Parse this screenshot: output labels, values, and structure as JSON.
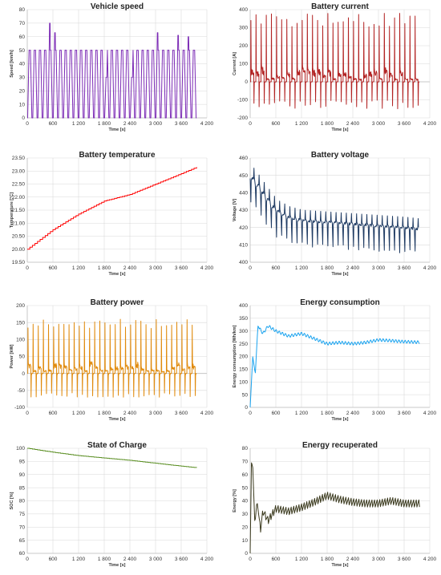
{
  "chart_data": [
    {
      "type": "line",
      "title": "Vehicle speed",
      "ylabel": "Speed [km/h]",
      "xlabel": "Time [s]",
      "xlim": [
        0,
        4200
      ],
      "ylim": [
        0,
        80
      ],
      "xticks": [
        0,
        600,
        1200,
        1800,
        2400,
        3000,
        3600,
        4200
      ],
      "yticks": [
        0,
        10,
        20,
        30,
        40,
        50,
        60,
        70,
        80
      ],
      "grid": true,
      "legend": "none",
      "color": "#7b2ab5",
      "series": [
        {
          "profile": "drive_cycle",
          "cycles": 33,
          "x_end": 3960,
          "cruise": 50,
          "peaks": [
            [
              480,
              70
            ],
            [
              660,
              63
            ],
            [
              1800,
              30
            ],
            [
              2460,
              30
            ],
            [
              3060,
              63
            ],
            [
              3540,
              61
            ],
            [
              3780,
              60
            ]
          ]
        }
      ]
    },
    {
      "type": "line",
      "title": "Battery current",
      "ylabel": "Current [A]",
      "xlabel": "Time [s]",
      "xlim": [
        0,
        4200
      ],
      "ylim": [
        -200,
        400
      ],
      "xticks": [
        0,
        600,
        1200,
        1800,
        2400,
        3000,
        3600,
        4200
      ],
      "yticks": [
        -200,
        -100,
        0,
        100,
        200,
        300,
        400
      ],
      "grid": true,
      "legend": "none",
      "color": "#b22222",
      "series": [
        {
          "profile": "spikes",
          "cycles": 33,
          "x_end": 3960,
          "spike_max": [
            300,
            380
          ],
          "regen_min": [
            -100,
            -150
          ],
          "cruise": [
            10,
            60
          ]
        }
      ]
    },
    {
      "type": "line",
      "title": "Battery temperature",
      "ylabel": "Temperature [°C]",
      "xlabel": "Time [s]",
      "xlim": [
        0,
        4200
      ],
      "ylim": [
        19.5,
        23.5
      ],
      "xticks": [
        0,
        600,
        1200,
        1800,
        2400,
        3000,
        3600,
        4200
      ],
      "yticks": [
        19.5,
        20,
        20.5,
        21,
        21.5,
        22,
        22.5,
        23,
        23.5
      ],
      "grid": true,
      "legend": "none",
      "color": "#ff0000",
      "series": [
        {
          "profile": "steps",
          "x": [
            0,
            600,
            1200,
            1800,
            2400,
            3000,
            3600,
            3960
          ],
          "y": [
            20.0,
            20.75,
            21.35,
            21.85,
            22.1,
            22.5,
            22.9,
            23.15
          ]
        }
      ]
    },
    {
      "type": "line",
      "title": "Battery voltage",
      "ylabel": "Voltage [V]",
      "xlabel": "Time [s]",
      "xlim": [
        0,
        4200
      ],
      "ylim": [
        400,
        460
      ],
      "xticks": [
        0,
        600,
        1200,
        1800,
        2400,
        3000,
        3600,
        4200
      ],
      "yticks": [
        400,
        410,
        420,
        430,
        440,
        450,
        460
      ],
      "grid": true,
      "legend": "none",
      "color": "#1f3b63",
      "series": [
        {
          "profile": "decay_spikes",
          "cycles": 33,
          "x_end": 3960,
          "x": [
            0,
            100,
            300,
            600,
            900,
            1200,
            1800,
            2400,
            3000,
            3600,
            3960
          ],
          "y": [
            450,
            447,
            440,
            430,
            426,
            424,
            423,
            422,
            421,
            420,
            419
          ],
          "spike_down": [
            15,
            12
          ],
          "spike_up": 2
        }
      ]
    },
    {
      "type": "line",
      "title": "Battery power",
      "ylabel": "Power [kW]",
      "xlabel": "Time [s]",
      "xlim": [
        0,
        4200
      ],
      "ylim": [
        -100,
        200
      ],
      "xticks": [
        0,
        600,
        1200,
        1800,
        2400,
        3000,
        3600,
        4200
      ],
      "yticks": [
        -100,
        -50,
        0,
        50,
        100,
        150,
        200
      ],
      "grid": true,
      "legend": "none",
      "color": "#e08a0c",
      "series": [
        {
          "profile": "spikes",
          "cycles": 33,
          "x_end": 3960,
          "spike_max": [
            130,
            160
          ],
          "regen_min": [
            -55,
            -70
          ],
          "cruise": [
            5,
            25
          ]
        }
      ]
    },
    {
      "type": "line",
      "title": "Energy consumption",
      "ylabel": "Energy consumption [Wh/km]",
      "xlabel": "Time [s]",
      "xlim": [
        0,
        4200
      ],
      "ylim": [
        0,
        400
      ],
      "xticks": [
        0,
        600,
        1200,
        1800,
        2400,
        3000,
        3600,
        4200
      ],
      "yticks": [
        0,
        50,
        100,
        150,
        200,
        250,
        300,
        350,
        400
      ],
      "grid": true,
      "legend": "none",
      "color": "#1aa3ef",
      "series": [
        {
          "profile": "ripple",
          "x": [
            0,
            60,
            120,
            180,
            300,
            420,
            600,
            900,
            1200,
            1500,
            1800,
            2100,
            2400,
            2700,
            3000,
            3300,
            3600,
            3960
          ],
          "y": [
            0,
            200,
            130,
            320,
            290,
            320,
            300,
            280,
            290,
            270,
            250,
            255,
            250,
            255,
            265,
            262,
            258,
            256
          ],
          "ripple": 12
        }
      ]
    },
    {
      "type": "line",
      "title": "State of Charge",
      "ylabel": "SOC [%]",
      "xlabel": "Time [s]",
      "xlim": [
        0,
        4200
      ],
      "ylim": [
        60,
        100
      ],
      "xticks": [
        0,
        600,
        1200,
        1800,
        2400,
        3000,
        3600,
        4200
      ],
      "yticks": [
        60,
        65,
        70,
        75,
        80,
        85,
        90,
        95,
        100
      ],
      "grid": true,
      "legend": "none",
      "color": "#5a8e22",
      "series": [
        {
          "profile": "steps",
          "x": [
            0,
            600,
            1200,
            1800,
            2400,
            3000,
            3600,
            3960
          ],
          "y": [
            100,
            98.5,
            97.2,
            96.3,
            95.4,
            94.3,
            93.2,
            92.6
          ]
        }
      ]
    },
    {
      "type": "line",
      "title": "Energy recuperated",
      "ylabel": "Energy [%]",
      "xlabel": "Time [s]",
      "xlim": [
        0,
        4200
      ],
      "ylim": [
        0,
        80
      ],
      "xticks": [
        0,
        600,
        1200,
        1800,
        2400,
        3000,
        3600,
        4200
      ],
      "yticks": [
        0,
        10,
        20,
        30,
        40,
        50,
        60,
        70,
        80
      ],
      "grid": true,
      "legend": "none",
      "color": "#3b3a1e",
      "series": [
        {
          "profile": "sawtooth",
          "x": [
            0,
            30,
            60,
            110,
            160,
            240,
            300,
            420,
            600,
            900,
            1200,
            1500,
            1800,
            2100,
            2400,
            2700,
            3000,
            3300,
            3600,
            3960
          ],
          "y": [
            0,
            69,
            66,
            22,
            40,
            18,
            32,
            25,
            34,
            32,
            35,
            39,
            44,
            41,
            39,
            38,
            38,
            40,
            38,
            38
          ],
          "ripple": 3
        }
      ]
    }
  ]
}
